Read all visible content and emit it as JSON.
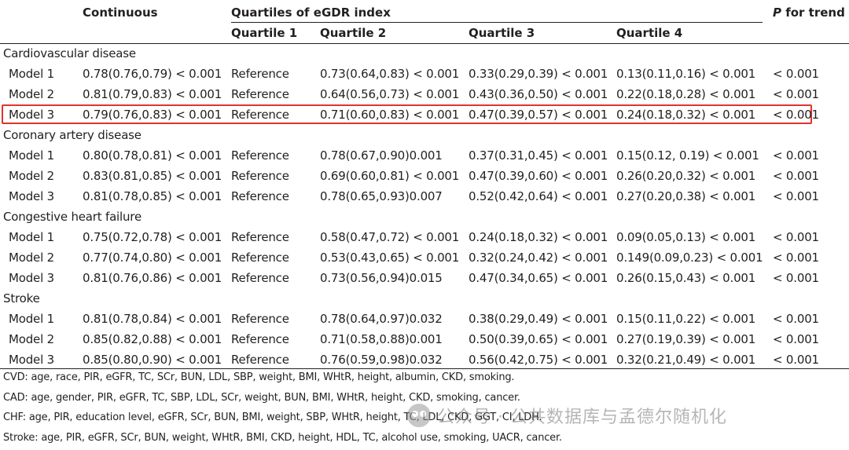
{
  "header": {
    "continuous": "Continuous",
    "quartiles_group": "Quartiles of eGDR index",
    "p_for_trend_italic": "P",
    "p_for_trend_rest": " for trend",
    "q1": "Quartile 1",
    "q2": "Quartile 2",
    "q3": "Quartile 3",
    "q4": "Quartile 4"
  },
  "sections": [
    {
      "title": "Cardiovascular disease",
      "rows": [
        {
          "model": "Model 1",
          "continuous": "0.78(0.76,0.79) < 0.001",
          "q1": "Reference",
          "q2": "0.73(0.64,0.83) < 0.001",
          "q3": "0.33(0.29,0.39) < 0.001",
          "q4": "0.13(0.11,0.16) < 0.001",
          "p": "< 0.001"
        },
        {
          "model": "Model 2",
          "continuous": "0.81(0.79,0.83) < 0.001",
          "q1": "Reference",
          "q2": "0.64(0.56,0.73) < 0.001",
          "q3": "0.43(0.36,0.50) < 0.001",
          "q4": "0.22(0.18,0.28) < 0.001",
          "p": "< 0.001"
        },
        {
          "model": "Model 3",
          "continuous": "0.79(0.76,0.83) < 0.001",
          "q1": "Reference",
          "q2": "0.71(0.60,0.83) < 0.001",
          "q3": "0.47(0.39,0.57) < 0.001",
          "q4": "0.24(0.18,0.32) < 0.001",
          "p": "< 0.001"
        }
      ]
    },
    {
      "title": "Coronary artery disease",
      "rows": [
        {
          "model": "Model 1",
          "continuous": "0.80(0.78,0.81) < 0.001",
          "q1": "Reference",
          "q2": "0.78(0.67,0.90)0.001",
          "q3": "0.37(0.31,0.45) < 0.001",
          "q4": "0.15(0.12, 0.19) < 0.001",
          "p": "< 0.001"
        },
        {
          "model": "Model 2",
          "continuous": "0.83(0.81,0.85) < 0.001",
          "q1": "Reference",
          "q2": "0.69(0.60,0.81) < 0.001",
          "q3": "0.47(0.39,0.60) < 0.001",
          "q4": "0.26(0.20,0.32) < 0.001",
          "p": "< 0.001"
        },
        {
          "model": "Model 3",
          "continuous": "0.81(0.78,0.85) < 0.001",
          "q1": "Reference",
          "q2": "0.78(0.65,0.93)0.007",
          "q3": "0.52(0.42,0.64) < 0.001",
          "q4": "0.27(0.20,0.38) < 0.001",
          "p": "< 0.001"
        }
      ]
    },
    {
      "title": "Congestive heart failure",
      "rows": [
        {
          "model": "Model 1",
          "continuous": "0.75(0.72,0.78) < 0.001",
          "q1": "Reference",
          "q2": "0.58(0.47,0.72) < 0.001",
          "q3": "0.24(0.18,0.32) < 0.001",
          "q4": "0.09(0.05,0.13) < 0.001",
          "p": "< 0.001"
        },
        {
          "model": "Model 2",
          "continuous": "0.77(0.74,0.80) < 0.001",
          "q1": "Reference",
          "q2": "0.53(0.43,0.65) < 0.001",
          "q3": "0.32(0.24,0.42) < 0.001",
          "q4": "0.149(0.09,0.23) < 0.001",
          "p": "< 0.001"
        },
        {
          "model": "Model 3",
          "continuous": "0.81(0.76,0.86) < 0.001",
          "q1": "Reference",
          "q2": "0.73(0.56,0.94)0.015",
          "q3": "0.47(0.34,0.65) < 0.001",
          "q4": "0.26(0.15,0.43) < 0.001",
          "p": "< 0.001"
        }
      ]
    },
    {
      "title": "Stroke",
      "rows": [
        {
          "model": "Model 1",
          "continuous": "0.81(0.78,0.84) < 0.001",
          "q1": "Reference",
          "q2": "0.78(0.64,0.97)0.032",
          "q3": "0.38(0.29,0.49) < 0.001",
          "q4": "0.15(0.11,0.22) < 0.001",
          "p": "< 0.001"
        },
        {
          "model": "Model 2",
          "continuous": "0.85(0.82,0.88) < 0.001",
          "q1": "Reference",
          "q2": "0.71(0.58,0.88)0.001",
          "q3": "0.50(0.39,0.65) < 0.001",
          "q4": "0.27(0.19,0.39) < 0.001",
          "p": "< 0.001"
        },
        {
          "model": "Model 3",
          "continuous": "0.85(0.80,0.90) < 0.001",
          "q1": "Reference",
          "q2": "0.76(0.59,0.98)0.032",
          "q3": "0.56(0.42,0.75) < 0.001",
          "q4": "0.32(0.21,0.49) < 0.001",
          "p": "< 0.001"
        }
      ]
    }
  ],
  "footnotes": [
    "CVD: age, race, PIR, eGFR, TC, SCr, BUN, LDL, SBP, weight, BMI, WHtR, height, albumin, CKD, smoking.",
    "CAD: age, gender, PIR, eGFR, TC, SBP, LDL, SCr, weight, BUN, BMI, WHtR, height, CKD, smoking, cancer.",
    "CHF: age, PIR, education level, eGFR, SCr, BUN, BMI, weight, SBP, WHtR, height, TC, LDL, CKD, GGT, CI, LDH.",
    "Stroke: age, PIR, eGFR, SCr, BUN, weight, WHtR, BMI, CKD, height, HDL, TC, alcohol use, smoking, UACR, cancer."
  ],
  "watermark": "公众号 · 公共数据库与孟德尔随机化",
  "highlight_color": "#e0332c"
}
